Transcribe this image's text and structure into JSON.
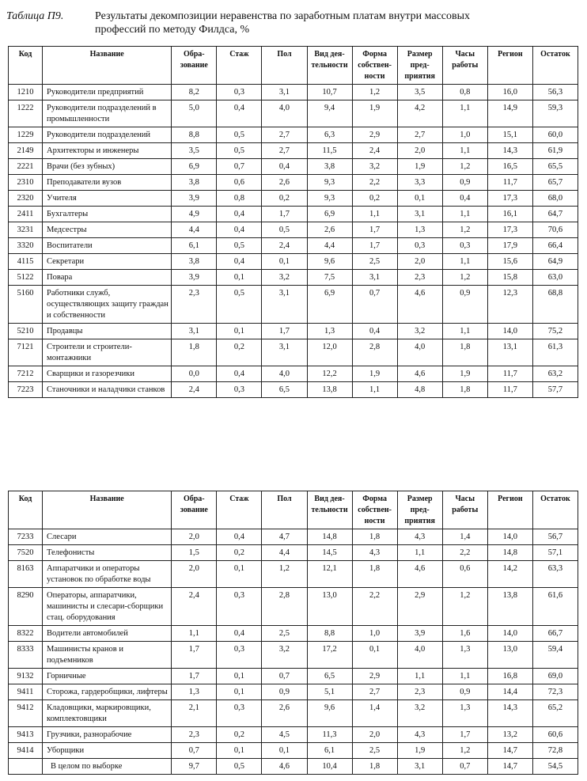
{
  "caption": {
    "label": "Таблица П9.",
    "title": "Результаты декомпозиции неравенства по заработным платам внутри массовых профессий по методу Филдса, %"
  },
  "columns": [
    "Код",
    "Название",
    "Обра-зование",
    "Стаж",
    "Пол",
    "Вид дея-тельности",
    "Форма собствен-ности",
    "Размер пред-приятия",
    "Часы работы",
    "Регион",
    "Остаток"
  ],
  "table1": {
    "rows": [
      {
        "code": "1210",
        "name": "Руководители предприятий",
        "values": [
          "8,2",
          "0,3",
          "3,1",
          "10,7",
          "1,2",
          "3,5",
          "0,8",
          "16,0",
          "56,3"
        ]
      },
      {
        "code": "1222",
        "name": "Руководители подразделений в промышленности",
        "values": [
          "5,0",
          "0,4",
          "4,0",
          "9,4",
          "1,9",
          "4,2",
          "1,1",
          "14,9",
          "59,3"
        ]
      },
      {
        "code": "1229",
        "name": "Руководители подразделений",
        "values": [
          "8,8",
          "0,5",
          "2,7",
          "6,3",
          "2,9",
          "2,7",
          "1,0",
          "15,1",
          "60,0"
        ]
      },
      {
        "code": "2149",
        "name": "Архитекторы и инженеры",
        "values": [
          "3,5",
          "0,5",
          "2,7",
          "11,5",
          "2,4",
          "2,0",
          "1,1",
          "14,3",
          "61,9"
        ]
      },
      {
        "code": "2221",
        "name": "Врачи (без зубных)",
        "values": [
          "6,9",
          "0,7",
          "0,4",
          "3,8",
          "3,2",
          "1,9",
          "1,2",
          "16,5",
          "65,5"
        ]
      },
      {
        "code": "2310",
        "name": "Преподаватели вузов",
        "values": [
          "3,8",
          "0,6",
          "2,6",
          "9,3",
          "2,2",
          "3,3",
          "0,9",
          "11,7",
          "65,7"
        ]
      },
      {
        "code": "2320",
        "name": "Учителя",
        "values": [
          "3,9",
          "0,8",
          "0,2",
          "9,3",
          "0,2",
          "0,1",
          "0,4",
          "17,3",
          "68,0"
        ]
      },
      {
        "code": "2411",
        "name": "Бухгалтеры",
        "values": [
          "4,9",
          "0,4",
          "1,7",
          "6,9",
          "1,1",
          "3,1",
          "1,1",
          "16,1",
          "64,7"
        ]
      },
      {
        "code": "3231",
        "name": "Медсестры",
        "values": [
          "4,4",
          "0,4",
          "0,5",
          "2,6",
          "1,7",
          "1,3",
          "1,2",
          "17,3",
          "70,6"
        ]
      },
      {
        "code": "3320",
        "name": "Воспитатели",
        "values": [
          "6,1",
          "0,5",
          "2,4",
          "4,4",
          "1,7",
          "0,3",
          "0,3",
          "17,9",
          "66,4"
        ]
      },
      {
        "code": "4115",
        "name": "Секретари",
        "values": [
          "3,8",
          "0,4",
          "0,1",
          "9,6",
          "2,5",
          "2,0",
          "1,1",
          "15,6",
          "64,9"
        ]
      },
      {
        "code": "5122",
        "name": "Повара",
        "values": [
          "3,9",
          "0,1",
          "3,2",
          "7,5",
          "3,1",
          "2,3",
          "1,2",
          "15,8",
          "63,0"
        ]
      },
      {
        "code": "5160",
        "name": "Работники служб, осуществляющих защиту граждан и собственности",
        "values": [
          "2,3",
          "0,5",
          "3,1",
          "6,9",
          "0,7",
          "4,6",
          "0,9",
          "12,3",
          "68,8"
        ]
      },
      {
        "code": "5210",
        "name": "Продавцы",
        "values": [
          "3,1",
          "0,1",
          "1,7",
          "1,3",
          "0,4",
          "3,2",
          "1,1",
          "14,0",
          "75,2"
        ]
      },
      {
        "code": "7121",
        "name": "Строители и строители-монтажники",
        "values": [
          "1,8",
          "0,2",
          "3,1",
          "12,0",
          "2,8",
          "4,0",
          "1,8",
          "13,1",
          "61,3"
        ]
      },
      {
        "code": "7212",
        "name": "Сварщики и газорезчики",
        "values": [
          "0,0",
          "0,4",
          "4,0",
          "12,2",
          "1,9",
          "4,6",
          "1,9",
          "11,7",
          "63,2"
        ]
      },
      {
        "code": "7223",
        "name": "Станочники и наладчики станков",
        "values": [
          "2,4",
          "0,3",
          "6,5",
          "13,8",
          "1,1",
          "4,8",
          "1,8",
          "11,7",
          "57,7"
        ]
      }
    ]
  },
  "table2": {
    "rows": [
      {
        "code": "7233",
        "name": "Слесари",
        "values": [
          "2,0",
          "0,4",
          "4,7",
          "14,8",
          "1,8",
          "4,3",
          "1,4",
          "14,0",
          "56,7"
        ]
      },
      {
        "code": "7520",
        "name": "Телефонисты",
        "values": [
          "1,5",
          "0,2",
          "4,4",
          "14,5",
          "4,3",
          "1,1",
          "2,2",
          "14,8",
          "57,1"
        ]
      },
      {
        "code": "8163",
        "name": "Аппаратчики и операторы установок по обработке воды",
        "values": [
          "2,0",
          "0,1",
          "1,2",
          "12,1",
          "1,8",
          "4,6",
          "0,6",
          "14,2",
          "63,3"
        ]
      },
      {
        "code": "8290",
        "name": "Операторы, аппаратчики, машинисты и слесари-сборщики стац. оборудования",
        "values": [
          "2,4",
          "0,3",
          "2,8",
          "13,0",
          "2,2",
          "2,9",
          "1,2",
          "13,8",
          "61,6"
        ]
      },
      {
        "code": "8322",
        "name": "Водители автомобилей",
        "values": [
          "1,1",
          "0,4",
          "2,5",
          "8,8",
          "1,0",
          "3,9",
          "1,6",
          "14,0",
          "66,7"
        ]
      },
      {
        "code": "8333",
        "name": "Машинисты кранов и подъемников",
        "values": [
          "1,7",
          "0,3",
          "3,2",
          "17,2",
          "0,1",
          "4,0",
          "1,3",
          "13,0",
          "59,4"
        ]
      },
      {
        "code": "9132",
        "name": "Горничные",
        "values": [
          "1,7",
          "0,1",
          "0,7",
          "6,5",
          "2,9",
          "1,1",
          "1,1",
          "16,8",
          "69,0"
        ]
      },
      {
        "code": "9411",
        "name": "Сторожа, гардеробщики, лифтеры",
        "values": [
          "1,3",
          "0,1",
          "0,9",
          "5,1",
          "2,7",
          "2,3",
          "0,9",
          "14,4",
          "72,3"
        ]
      },
      {
        "code": "9412",
        "name": "Кладовщики, маркировщики, комплектовщики",
        "values": [
          "2,1",
          "0,3",
          "2,6",
          "9,6",
          "1,4",
          "3,2",
          "1,3",
          "14,3",
          "65,2"
        ]
      },
      {
        "code": "9413",
        "name": "Грузчики, разнорабочие",
        "values": [
          "2,3",
          "0,2",
          "4,5",
          "11,3",
          "2,0",
          "4,3",
          "1,7",
          "13,2",
          "60,6"
        ]
      },
      {
        "code": "9414",
        "name": "Уборщики",
        "values": [
          "0,7",
          "0,1",
          "0,1",
          "6,1",
          "2,5",
          "1,9",
          "1,2",
          "14,7",
          "72,8"
        ]
      }
    ],
    "total": {
      "code": "",
      "name": "В целом по выборке",
      "values": [
        "9,7",
        "0,5",
        "4,6",
        "10,4",
        "1,8",
        "3,1",
        "0,7",
        "14,7",
        "54,5"
      ]
    }
  }
}
